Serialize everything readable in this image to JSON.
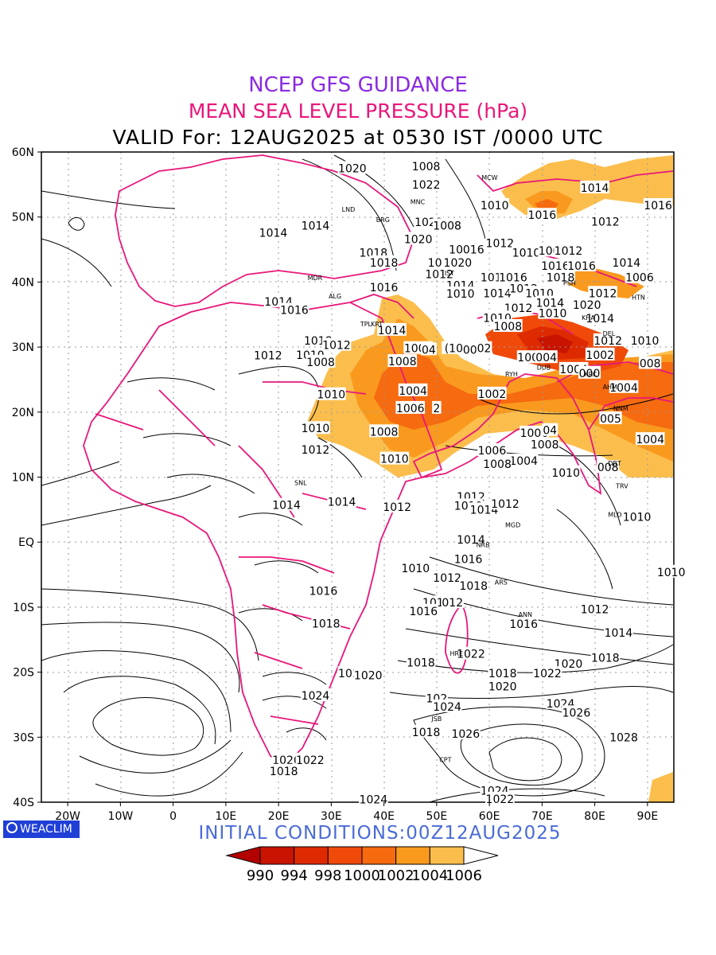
{
  "header": {
    "title": "NCEP GFS GUIDANCE",
    "subtitle": "MEAN SEA LEVEL PRESSURE (hPa)",
    "valid": "VALID For: 12AUG2025 at 0530 IST /0000 UTC"
  },
  "footer": {
    "logo": "WEACLIM",
    "initial": "INITIAL CONDITIONS:00Z12AUG2025"
  },
  "axes": {
    "lon_labels": [
      "20W",
      "10W",
      "0",
      "10E",
      "20E",
      "30E",
      "40E",
      "50E",
      "60E",
      "70E",
      "80E",
      "90E"
    ],
    "lat_labels": [
      "60N",
      "50N",
      "40N",
      "30N",
      "20N",
      "10N",
      "EQ",
      "10S",
      "20S",
      "30S",
      "40S"
    ]
  },
  "colorbar": {
    "labels": [
      "990",
      "994",
      "998",
      "1000",
      "1002",
      "1004",
      "1006"
    ],
    "colors": [
      "#b30000",
      "#c81400",
      "#de2a00",
      "#f04a0a",
      "#f66a10",
      "#f99a1f",
      "#fbbe4d",
      "#ffffff"
    ]
  },
  "colors": {
    "title": "#8a2be2",
    "subtitle": "#e8177a",
    "boundaries": "#e8177a",
    "initial": "#4a6bd8"
  },
  "isobar_labels": [
    {
      "t": "1014",
      "lon": 58.0,
      "lat": 60.4
    },
    {
      "t": "1020",
      "lon": 34.0,
      "lat": 57.5
    },
    {
      "t": "1008",
      "lon": 48.0,
      "lat": 57.8
    },
    {
      "t": "1022",
      "lon": 48.0,
      "lat": 55.0
    },
    {
      "t": "1010",
      "lon": 61.0,
      "lat": 51.8
    },
    {
      "t": "1016",
      "lon": 70.0,
      "lat": 50.3
    },
    {
      "t": "1014",
      "lon": 80.0,
      "lat": 54.5
    },
    {
      "t": "1016",
      "lon": 92.0,
      "lat": 51.8
    },
    {
      "t": "1022",
      "lon": 48.5,
      "lat": 49.2
    },
    {
      "t": "1014",
      "lon": 27.0,
      "lat": 48.7
    },
    {
      "t": "1014",
      "lon": 19.0,
      "lat": 47.6
    },
    {
      "t": "1012",
      "lon": 62.0,
      "lat": 46.0
    },
    {
      "t": "1008",
      "lon": 52.0,
      "lat": 48.7
    },
    {
      "t": "1012",
      "lon": 82.0,
      "lat": 49.3
    },
    {
      "t": "1020",
      "lon": 46.5,
      "lat": 46.6
    },
    {
      "t": "1018",
      "lon": 38.0,
      "lat": 44.5
    },
    {
      "t": "1018",
      "lon": 55.0,
      "lat": 45.0
    },
    {
      "t": "016",
      "lon": 57.0,
      "lat": 45.0
    },
    {
      "t": "1010",
      "lon": 67.0,
      "lat": 44.5
    },
    {
      "t": "1006",
      "lon": 72.0,
      "lat": 44.8
    },
    {
      "t": "1012",
      "lon": 75.0,
      "lat": 44.8
    },
    {
      "t": "1016",
      "lon": 51.0,
      "lat": 43.0
    },
    {
      "t": "1020",
      "lon": 54.0,
      "lat": 43.0
    },
    {
      "t": "1018",
      "lon": 40.0,
      "lat": 43.0
    },
    {
      "t": "1014",
      "lon": 86.0,
      "lat": 43.0
    },
    {
      "t": "1016",
      "lon": 72.5,
      "lat": 42.5
    },
    {
      "t": "1016",
      "lon": 77.5,
      "lat": 42.5
    },
    {
      "t": "1012",
      "lon": 50.5,
      "lat": 41.2
    },
    {
      "t": "1018",
      "lon": 61.0,
      "lat": 40.7
    },
    {
      "t": "1016",
      "lon": 64.5,
      "lat": 40.7
    },
    {
      "t": "1018",
      "lon": 73.5,
      "lat": 40.7
    },
    {
      "t": "1006",
      "lon": 88.5,
      "lat": 40.7
    },
    {
      "t": "1016",
      "lon": 40.0,
      "lat": 39.2
    },
    {
      "t": "1014",
      "lon": 54.5,
      "lat": 39.5
    },
    {
      "t": "1014",
      "lon": 20.0,
      "lat": 37.0
    },
    {
      "t": "1016",
      "lon": 23.0,
      "lat": 35.7
    },
    {
      "t": "1010",
      "lon": 54.5,
      "lat": 38.2
    },
    {
      "t": "1014",
      "lon": 61.5,
      "lat": 38.3
    },
    {
      "t": "1012",
      "lon": 66.5,
      "lat": 39.0
    },
    {
      "t": "1010",
      "lon": 69.5,
      "lat": 38.3
    },
    {
      "t": "1012",
      "lon": 81.5,
      "lat": 38.3
    },
    {
      "t": "1020",
      "lon": 78.5,
      "lat": 36.5
    },
    {
      "t": "1012",
      "lon": 65.5,
      "lat": 36.0
    },
    {
      "t": "1010",
      "lon": 72.0,
      "lat": 35.2
    },
    {
      "t": "1014",
      "lon": 71.5,
      "lat": 36.8
    },
    {
      "t": "1010",
      "lon": 61.5,
      "lat": 34.5
    },
    {
      "t": "1008",
      "lon": 63.5,
      "lat": 33.2
    },
    {
      "t": "1014",
      "lon": 81.0,
      "lat": 34.4
    },
    {
      "t": "1014",
      "lon": 41.5,
      "lat": 32.6
    },
    {
      "t": "1018",
      "lon": 27.5,
      "lat": 31.0
    },
    {
      "t": "1012",
      "lon": 31.0,
      "lat": 30.3
    },
    {
      "t": "1012",
      "lon": 82.5,
      "lat": 31.0
    },
    {
      "t": "1010",
      "lon": 89.5,
      "lat": 31.0
    },
    {
      "t": "1006",
      "lon": 46.5,
      "lat": 29.8
    },
    {
      "t": "04",
      "lon": 48.5,
      "lat": 29.6
    },
    {
      "t": "(1006)",
      "lon": 55.0,
      "lat": 29.8
    },
    {
      "t": "004",
      "lon": 57.0,
      "lat": 29.6
    },
    {
      "t": "02",
      "lon": 59.0,
      "lat": 29.8
    },
    {
      "t": "1012",
      "lon": 18.0,
      "lat": 28.7
    },
    {
      "t": "1010",
      "lon": 26.0,
      "lat": 28.8
    },
    {
      "t": "1006",
      "lon": 68.0,
      "lat": 28.4
    },
    {
      "t": "004",
      "lon": 70.8,
      "lat": 28.4
    },
    {
      "t": "1002",
      "lon": 81.0,
      "lat": 28.8
    },
    {
      "t": "1008",
      "lon": 28.0,
      "lat": 27.7
    },
    {
      "t": "1008",
      "lon": 43.5,
      "lat": 27.8
    },
    {
      "t": "1004",
      "lon": 76.0,
      "lat": 26.6
    },
    {
      "t": "000",
      "lon": 79.0,
      "lat": 26.0
    },
    {
      "t": "008",
      "lon": 90.5,
      "lat": 27.5
    },
    {
      "t": "1004",
      "lon": 45.5,
      "lat": 23.3
    },
    {
      "t": "1002",
      "lon": 60.5,
      "lat": 22.8
    },
    {
      "t": "1004",
      "lon": 85.5,
      "lat": 23.8
    },
    {
      "t": "1010",
      "lon": 30.0,
      "lat": 22.7
    },
    {
      "t": "1006",
      "lon": 45.0,
      "lat": 20.6
    },
    {
      "t": "2",
      "lon": 50.0,
      "lat": 20.6
    },
    {
      "t": "005",
      "lon": 83.0,
      "lat": 19.0
    },
    {
      "t": "1010",
      "lon": 27.0,
      "lat": 17.5
    },
    {
      "t": "1008",
      "lon": 40.0,
      "lat": 17.0
    },
    {
      "t": "1006",
      "lon": 68.5,
      "lat": 16.8
    },
    {
      "t": "04",
      "lon": 71.5,
      "lat": 17.2
    },
    {
      "t": "1004",
      "lon": 90.5,
      "lat": 15.8
    },
    {
      "t": "1012",
      "lon": 27.0,
      "lat": 14.2
    },
    {
      "t": "1008",
      "lon": 70.5,
      "lat": 15.0
    },
    {
      "t": "1010",
      "lon": 42.0,
      "lat": 12.8
    },
    {
      "t": "1006",
      "lon": 60.5,
      "lat": 14.1
    },
    {
      "t": "1004",
      "lon": 66.5,
      "lat": 12.5
    },
    {
      "t": "1008",
      "lon": 61.5,
      "lat": 12.0
    },
    {
      "t": "1010",
      "lon": 74.5,
      "lat": 10.7
    },
    {
      "t": "008",
      "lon": 82.5,
      "lat": 11.5
    },
    {
      "t": "1014",
      "lon": 21.5,
      "lat": 5.7
    },
    {
      "t": "1014",
      "lon": 32.0,
      "lat": 6.2
    },
    {
      "t": "1012",
      "lon": 42.5,
      "lat": 5.4
    },
    {
      "t": "1012",
      "lon": 56.5,
      "lat": 7.0
    },
    {
      "t": "1010",
      "lon": 56.0,
      "lat": 5.6
    },
    {
      "t": "1014",
      "lon": 59.0,
      "lat": 5.0
    },
    {
      "t": "1012",
      "lon": 63.0,
      "lat": 5.9
    },
    {
      "t": "1010",
      "lon": 88.0,
      "lat": 3.9
    },
    {
      "t": "1014",
      "lon": 56.5,
      "lat": 0.4
    },
    {
      "t": "1016",
      "lon": 56.0,
      "lat": -2.6
    },
    {
      "t": "1010",
      "lon": 46.0,
      "lat": -4.0
    },
    {
      "t": "1012",
      "lon": 52.0,
      "lat": -5.5
    },
    {
      "t": "1018",
      "lon": 57.0,
      "lat": -6.7
    },
    {
      "t": "1010",
      "lon": 94.5,
      "lat": -4.6
    },
    {
      "t": "1016",
      "lon": 28.5,
      "lat": -7.5
    },
    {
      "t": "1014",
      "lon": 50.0,
      "lat": -9.3
    },
    {
      "t": "012",
      "lon": 53.0,
      "lat": -9.3
    },
    {
      "t": "1016",
      "lon": 47.5,
      "lat": -10.6
    },
    {
      "t": "1012",
      "lon": 80.0,
      "lat": -10.3
    },
    {
      "t": "1018",
      "lon": 29.0,
      "lat": -12.5
    },
    {
      "t": "1016",
      "lon": 66.5,
      "lat": -12.6
    },
    {
      "t": "1014",
      "lon": 84.5,
      "lat": -13.9
    },
    {
      "t": "1018",
      "lon": 82.0,
      "lat": -17.8
    },
    {
      "t": "1022",
      "lon": 56.5,
      "lat": -17.2
    },
    {
      "t": "1018",
      "lon": 47.0,
      "lat": -18.5
    },
    {
      "t": "1020",
      "lon": 75.0,
      "lat": -18.7
    },
    {
      "t": "1022",
      "lon": 34.0,
      "lat": -20.2
    },
    {
      "t": "1020",
      "lon": 37.0,
      "lat": -20.5
    },
    {
      "t": "1022",
      "lon": 71.0,
      "lat": -20.2
    },
    {
      "t": "1018",
      "lon": 62.5,
      "lat": -20.2
    },
    {
      "t": "1020",
      "lon": 62.5,
      "lat": -22.2
    },
    {
      "t": "1024",
      "lon": 27.0,
      "lat": -23.6
    },
    {
      "t": "102",
      "lon": 50.0,
      "lat": -24.0
    },
    {
      "t": "1024",
      "lon": 52.0,
      "lat": -25.3
    },
    {
      "t": "1024",
      "lon": 73.5,
      "lat": -24.8
    },
    {
      "t": "1026",
      "lon": 76.5,
      "lat": -26.2
    },
    {
      "t": "1018",
      "lon": 48.0,
      "lat": -29.2
    },
    {
      "t": "1026",
      "lon": 55.5,
      "lat": -29.5
    },
    {
      "t": "1028",
      "lon": 85.5,
      "lat": -30.0
    },
    {
      "t": "1020",
      "lon": 21.5,
      "lat": -33.5
    },
    {
      "t": "1022",
      "lon": 26.0,
      "lat": -33.5
    },
    {
      "t": "1018",
      "lon": 21.0,
      "lat": -35.2
    },
    {
      "t": "1024",
      "lon": 38.0,
      "lat": -39.6
    },
    {
      "t": "1024",
      "lon": 61.0,
      "lat": -38.2
    },
    {
      "t": "1022",
      "lon": 62.0,
      "lat": -39.5
    }
  ],
  "stations": [
    {
      "t": "MCW",
      "lon": 58.5,
      "lat": 55.7
    },
    {
      "t": "MNC",
      "lon": 45.0,
      "lat": 52.0
    },
    {
      "t": "LND",
      "lon": 32.0,
      "lat": 50.8
    },
    {
      "t": "BRG",
      "lon": 38.5,
      "lat": 49.2
    },
    {
      "t": "IST",
      "lon": 51.5,
      "lat": 41.0
    },
    {
      "t": "MDR",
      "lon": 25.5,
      "lat": 40.3
    },
    {
      "t": "ALG",
      "lon": 29.5,
      "lat": 37.5
    },
    {
      "t": "TPL",
      "lon": 35.5,
      "lat": 33.2
    },
    {
      "t": "KRT",
      "lon": 37.5,
      "lat": 33.2
    },
    {
      "t": "RYH",
      "lon": 63.0,
      "lat": 25.5
    },
    {
      "t": "DUB",
      "lon": 69.0,
      "lat": 26.5
    },
    {
      "t": "KRC",
      "lon": 78.0,
      "lat": 25.5
    },
    {
      "t": "AHM",
      "lon": 81.5,
      "lat": 23.5
    },
    {
      "t": "KOL",
      "lon": 96.0,
      "lat": 23.2
    },
    {
      "t": "NNM",
      "lon": 83.5,
      "lat": 20.2
    },
    {
      "t": "DBT",
      "lon": 82.5,
      "lat": 11.8
    },
    {
      "t": "TRV",
      "lon": 84.0,
      "lat": 8.3
    },
    {
      "t": "MLD",
      "lon": 82.5,
      "lat": 3.9
    },
    {
      "t": "SNL",
      "lon": 23.0,
      "lat": 8.8
    },
    {
      "t": "NRB",
      "lon": 57.5,
      "lat": -0.8
    },
    {
      "t": "MGD",
      "lon": 63.0,
      "lat": 2.3
    },
    {
      "t": "ARS",
      "lon": 61.0,
      "lat": -6.5
    },
    {
      "t": "ANN",
      "lon": 65.5,
      "lat": -11.5
    },
    {
      "t": "HRE",
      "lon": 52.5,
      "lat": -17.5
    },
    {
      "t": "JSB",
      "lon": 49.0,
      "lat": -27.5
    },
    {
      "t": "CPT",
      "lon": 50.5,
      "lat": -33.8
    },
    {
      "t": "HTN",
      "lon": 87.0,
      "lat": 37.3
    },
    {
      "t": "PSH",
      "lon": 74.0,
      "lat": 39.5
    },
    {
      "t": "KHA",
      "lon": 77.5,
      "lat": 34.2
    },
    {
      "t": "DEL",
      "lon": 81.5,
      "lat": 31.7
    },
    {
      "t": "BKK",
      "lon": 93.5,
      "lat": 27.7
    }
  ]
}
